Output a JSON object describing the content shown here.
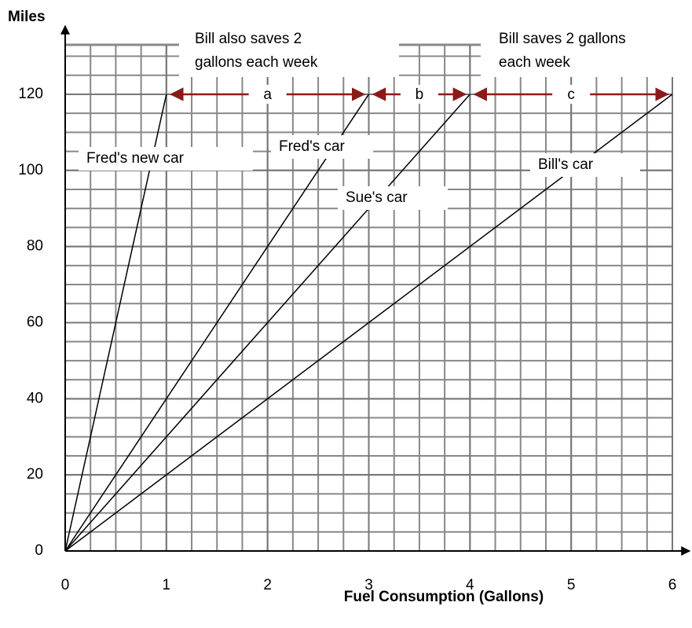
{
  "chart_data": {
    "type": "line",
    "y_label": "Miles",
    "x_label": "Fuel Consumption (Gallons)",
    "xlim": [
      0,
      6
    ],
    "ylim": [
      0,
      133
    ],
    "xticks": [
      0,
      1,
      2,
      3,
      4,
      5,
      6
    ],
    "yticks": [
      0,
      20,
      40,
      60,
      80,
      100,
      120
    ],
    "grid": true,
    "series": [
      {
        "name": "Fred's new car",
        "color": "#000000",
        "x": [
          0,
          1
        ],
        "values": [
          0,
          120
        ]
      },
      {
        "name": "Fred's car",
        "color": "#000000",
        "x": [
          0,
          3
        ],
        "values": [
          0,
          120
        ]
      },
      {
        "name": "Sue's car",
        "color": "#000000",
        "x": [
          0,
          4
        ],
        "values": [
          0,
          120
        ]
      },
      {
        "name": "Bill's car",
        "color": "#000000",
        "x": [
          0,
          6
        ],
        "values": [
          0,
          120
        ]
      }
    ],
    "arrow_labels": [
      "a",
      "b",
      "c"
    ],
    "arrow_color": "#8b1a1a",
    "annotations": [
      [
        "Bill also saves 2",
        "gallons each week"
      ],
      [
        "Bill saves 2 gallons",
        "each week"
      ]
    ]
  }
}
